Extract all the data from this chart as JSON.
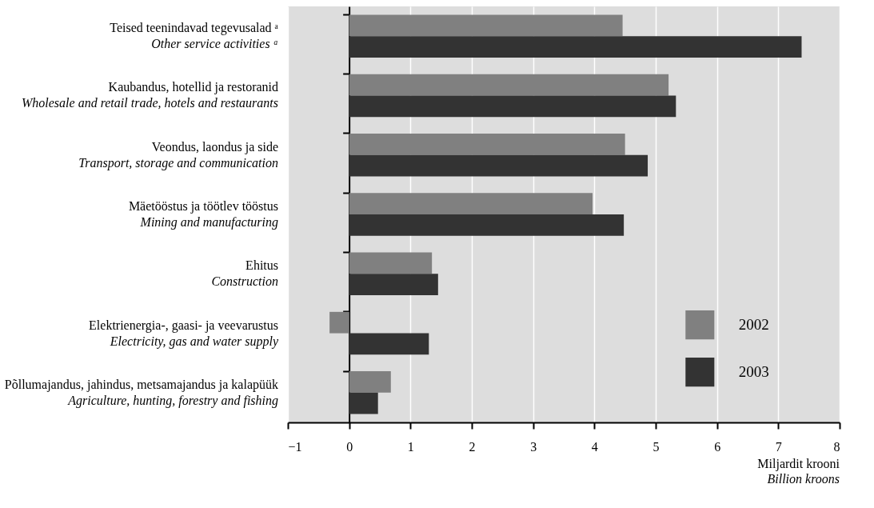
{
  "chart_data": {
    "type": "bar",
    "orientation": "horizontal",
    "xlabel": "Miljardit krooni\nBillion kroons",
    "categories": [
      "Teised teenindavad tegevusalad ᵃ\nOther service activities ᵃ",
      "Kaubandus, hotellid ja restoranid\nWholesale and retail trade, hotels and restaurants",
      "Veondus, laondus ja side\nTransport, storage and communication",
      "Mäetööstus ja töötlev tööstus\nMining and manufacturing",
      "Ehitus\nConstruction",
      "Elektrienergia-, gaasi- ja veevarustus\nElectricity, gas and water supply",
      "Põllumajandus, jahindus, metsamajandus ja kalapüük\nAgriculture, hunting, forestry and fishing"
    ],
    "series": [
      {
        "name": "2002",
        "color": "#808080",
        "values": [
          4.46,
          5.21,
          4.5,
          3.97,
          1.35,
          -0.32,
          0.68
        ]
      },
      {
        "name": "2003",
        "color": "#333333",
        "values": [
          7.38,
          5.33,
          4.87,
          4.48,
          1.45,
          1.3,
          0.47
        ]
      }
    ],
    "xlim": [
      -1,
      8
    ],
    "xticks": [
      -1,
      0,
      1,
      2,
      3,
      4,
      5,
      6,
      7,
      8
    ],
    "grid": "x",
    "legend": "bottom right"
  }
}
